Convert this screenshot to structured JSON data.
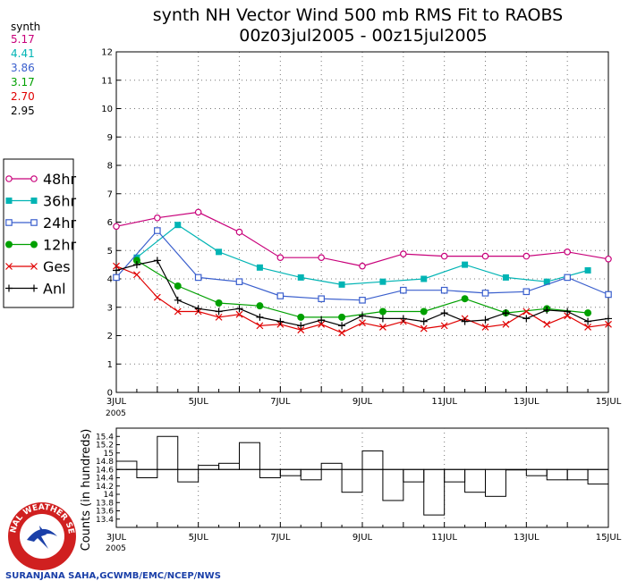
{
  "title_line1": "synth NH Vector Wind 500 mb RMS Fit to RAOBS",
  "title_line2": "00z03jul2005 - 00z15jul2005",
  "stats_header": "synth",
  "stats": [
    {
      "value": "5.17",
      "color": "#c8007a"
    },
    {
      "value": "4.41",
      "color": "#00b4b4"
    },
    {
      "value": "3.86",
      "color": "#3a5fcd"
    },
    {
      "value": "3.17",
      "color": "#00a000"
    },
    {
      "value": "2.70",
      "color": "#e00000"
    },
    {
      "value": "2.95",
      "color": "#000000"
    }
  ],
  "credit": "SURANJANA SAHA,GCWMB/EMC/NCEP/NWS",
  "logo_text": "NATIONAL WEATHER SERVICE",
  "chart_data": [
    {
      "type": "line",
      "ylim": [
        0,
        12
      ],
      "yticks": [
        "0",
        "1",
        "2",
        "3",
        "4",
        "5",
        "6",
        "7",
        "8",
        "9",
        "10",
        "11",
        "12"
      ],
      "xlim": [
        0,
        12
      ],
      "xtick_labels": [
        {
          "x": 0,
          "label": "3JUL"
        },
        {
          "x": 2,
          "label": "5JUL"
        },
        {
          "x": 4,
          "label": "7JUL"
        },
        {
          "x": 6,
          "label": "9JUL"
        },
        {
          "x": 8,
          "label": "11JUL"
        },
        {
          "x": 10,
          "label": "13JUL"
        },
        {
          "x": 12,
          "label": "15JUL"
        }
      ],
      "xyear": "2005",
      "grid": true,
      "legend_position": "left",
      "series": [
        {
          "name": "48hr",
          "color": "#c8007a",
          "marker": "circle",
          "x": [
            0,
            1,
            2,
            3,
            4,
            5,
            6,
            7,
            8,
            9,
            10,
            11,
            12
          ],
          "y": [
            5.85,
            6.15,
            6.35,
            5.65,
            4.75,
            4.75,
            4.45,
            4.88,
            4.8,
            4.8,
            4.8,
            4.95,
            4.7
          ]
        },
        {
          "name": "36hr",
          "color": "#00b4b4",
          "marker": "square",
          "x": [
            0.5,
            1.5,
            2.5,
            3.5,
            4.5,
            5.5,
            6.5,
            7.5,
            8.5,
            9.5,
            10.5,
            11.5
          ],
          "y": [
            4.75,
            5.9,
            4.95,
            4.4,
            4.05,
            3.8,
            3.9,
            4.0,
            4.5,
            4.05,
            3.9,
            4.3
          ]
        },
        {
          "name": "24hr",
          "color": "#3a5fcd",
          "marker": "square-open",
          "x": [
            0,
            1,
            2,
            3,
            4,
            5,
            6,
            7,
            8,
            9,
            10,
            11,
            12
          ],
          "y": [
            4.05,
            5.7,
            4.05,
            3.9,
            3.4,
            3.3,
            3.25,
            3.6,
            3.6,
            3.5,
            3.55,
            4.05,
            3.45
          ]
        },
        {
          "name": "12hr",
          "color": "#00a000",
          "marker": "dot",
          "x": [
            0.5,
            1.5,
            2.5,
            3.5,
            4.5,
            5.5,
            6.5,
            7.5,
            8.5,
            9.5,
            10.5,
            11.5
          ],
          "y": [
            4.65,
            3.75,
            3.15,
            3.05,
            2.65,
            2.65,
            2.85,
            2.85,
            3.3,
            2.8,
            2.95,
            2.8
          ]
        },
        {
          "name": "Ges",
          "color": "#e00000",
          "marker": "x",
          "x": [
            0,
            0.5,
            1,
            1.5,
            2,
            2.5,
            3,
            3.5,
            4,
            4.5,
            5,
            5.5,
            6,
            6.5,
            7,
            7.5,
            8,
            8.5,
            9,
            9.5,
            10,
            10.5,
            11,
            11.5,
            12
          ],
          "y": [
            4.45,
            4.15,
            3.35,
            2.85,
            2.85,
            2.65,
            2.75,
            2.35,
            2.4,
            2.2,
            2.4,
            2.1,
            2.45,
            2.3,
            2.5,
            2.25,
            2.35,
            2.6,
            2.3,
            2.4,
            2.85,
            2.4,
            2.7,
            2.3,
            2.4
          ]
        },
        {
          "name": "Anl",
          "color": "#000000",
          "marker": "plus",
          "x": [
            0,
            0.5,
            1,
            1.5,
            2,
            2.5,
            3,
            3.5,
            4,
            4.5,
            5,
            5.5,
            6,
            6.5,
            7,
            7.5,
            8,
            8.5,
            9,
            9.5,
            10,
            10.5,
            11,
            11.5,
            12
          ],
          "y": [
            4.3,
            4.5,
            4.65,
            3.25,
            2.95,
            2.85,
            2.95,
            2.65,
            2.5,
            2.35,
            2.55,
            2.35,
            2.7,
            2.6,
            2.6,
            2.5,
            2.8,
            2.5,
            2.55,
            2.8,
            2.6,
            2.9,
            2.85,
            2.5,
            2.6
          ]
        }
      ]
    },
    {
      "type": "bar",
      "ylabel": "Counts (in hundreds)",
      "ylim": [
        13.2,
        15.6
      ],
      "yticks": [
        "13.4",
        "13.6",
        "13.8",
        "14",
        "14.2",
        "14.4",
        "14.6",
        "14.8",
        "15",
        "15.2",
        "15.4"
      ],
      "reference_line": 14.6,
      "xlim": [
        0,
        12
      ],
      "xtick_labels": [
        {
          "x": 0,
          "label": "3JUL"
        },
        {
          "x": 2,
          "label": "5JUL"
        },
        {
          "x": 4,
          "label": "7JUL"
        },
        {
          "x": 6,
          "label": "9JUL"
        },
        {
          "x": 8,
          "label": "11JUL"
        },
        {
          "x": 10,
          "label": "13JUL"
        },
        {
          "x": 12,
          "label": "15JUL"
        }
      ],
      "xyear": "2005",
      "bar_width": 0.5,
      "x": [
        0,
        0.5,
        1,
        1.5,
        2,
        2.5,
        3,
        3.5,
        4,
        4.5,
        5,
        5.5,
        6,
        6.5,
        7,
        7.5,
        8,
        8.5,
        9,
        9.5,
        10,
        10.5,
        11,
        11.5
      ],
      "values": [
        14.8,
        14.4,
        15.4,
        14.3,
        14.7,
        14.75,
        15.25,
        14.4,
        14.45,
        14.35,
        14.75,
        14.05,
        15.05,
        13.85,
        14.3,
        13.5,
        14.3,
        14.05,
        13.95,
        14.6,
        14.45,
        14.35,
        14.35,
        14.25
      ]
    }
  ]
}
